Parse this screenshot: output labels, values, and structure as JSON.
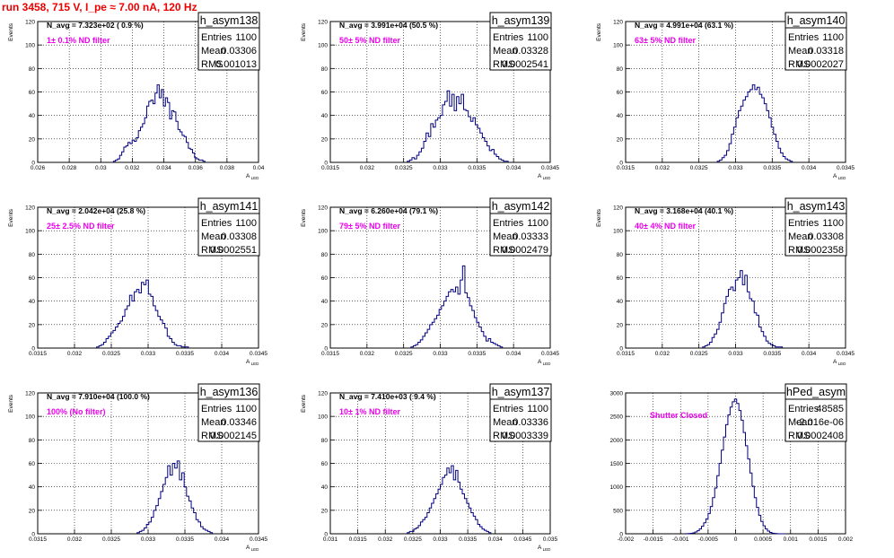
{
  "title": "run 3458,   715 V, I_pe ≈ 7.00 nA, 120 Hz",
  "colors": {
    "title": "#ee0000",
    "annotation": "#ee00ee",
    "histogram": "#000080"
  },
  "chart_data": [
    {
      "type": "histogram",
      "name": "h_asym138",
      "annotation": "N_avg = 7.323e+02 ( 0.9 %)",
      "filter_label": "1± 0.1% ND filter",
      "stats": {
        "entries_label": "Entries",
        "entries": "1100",
        "mean_label": "Mean",
        "mean": "0.03306",
        "rms_label": "RMS",
        "rms": "0.001013"
      },
      "ylabel": "Events",
      "xlabel": "A_LED",
      "xlim": [
        0.026,
        0.04
      ],
      "ylim": [
        0,
        120
      ],
      "xticks": [
        "0.026",
        "0.028",
        "0.03",
        "0.032",
        "0.034",
        "0.036",
        "0.038",
        "0.04"
      ],
      "yticks": [
        "0",
        "20",
        "40",
        "60",
        "80",
        "100",
        "120"
      ],
      "bins": {
        "x0": 0.0308,
        "width": 0.000132,
        "values": [
          1,
          2,
          3,
          6,
          9,
          13,
          14,
          17,
          16,
          19,
          18,
          21,
          27,
          30,
          33,
          38,
          48,
          52,
          53,
          50,
          59,
          66,
          55,
          62,
          48,
          55,
          51,
          37,
          44,
          43,
          35,
          28,
          26,
          23,
          22,
          17,
          12,
          11,
          8,
          4,
          3,
          2,
          2,
          1
        ]
      }
    },
    {
      "type": "histogram",
      "name": "h_asym139",
      "annotation": "N_avg = 3.991e+04 (50.5 %)",
      "filter_label": "50± 5% ND filter",
      "stats": {
        "entries_label": "Entries",
        "entries": "1100",
        "mean_label": "Mean",
        "mean": "0.03328",
        "rms_label": "RMS",
        "rms": "0.0002541"
      },
      "ylabel": "Events",
      "xlabel": "A_LED",
      "xlim": [
        0.0315,
        0.0345
      ],
      "ylim": [
        0,
        120
      ],
      "xticks": [
        "0.0315",
        "0.032",
        "0.0325",
        "0.033",
        "0.0335",
        "0.034",
        "0.0345"
      ],
      "yticks": [
        "0",
        "20",
        "40",
        "60",
        "80",
        "100",
        "120"
      ],
      "bins": {
        "x0": 0.03255,
        "width": 3.2e-05,
        "values": [
          1,
          2,
          4,
          3,
          6,
          9,
          12,
          18,
          25,
          22,
          33,
          30,
          36,
          38,
          40,
          49,
          52,
          61,
          48,
          58,
          44,
          56,
          50,
          58,
          45,
          44,
          39,
          35,
          38,
          32,
          29,
          25,
          21,
          18,
          14,
          10,
          11,
          7,
          5,
          3,
          2,
          1,
          1
        ]
      }
    },
    {
      "type": "histogram",
      "name": "h_asym140",
      "annotation": "N_avg = 4.991e+04 (63.1 %)",
      "filter_label": "63± 5% ND filter",
      "stats": {
        "entries_label": "Entries",
        "entries": "1100",
        "mean_label": "Mean",
        "mean": "0.03318",
        "rms_label": "RMS",
        "rms": "0.0002027"
      },
      "ylabel": "Events",
      "xlabel": "A_LED",
      "xlim": [
        0.0315,
        0.0345
      ],
      "ylim": [
        0,
        120
      ],
      "xticks": [
        "0.0315",
        "0.032",
        "0.0325",
        "0.033",
        "0.0335",
        "0.034",
        "0.0345"
      ],
      "yticks": [
        "0",
        "20",
        "40",
        "60",
        "80",
        "100",
        "120"
      ],
      "bins": {
        "x0": 0.03275,
        "width": 3.2e-05,
        "values": [
          1,
          2,
          4,
          6,
          10,
          16,
          24,
          30,
          38,
          44,
          48,
          53,
          56,
          60,
          62,
          66,
          62,
          64,
          58,
          55,
          50,
          44,
          38,
          30,
          24,
          18,
          12,
          8,
          5,
          3,
          2,
          1
        ]
      }
    },
    {
      "type": "histogram",
      "name": "h_asym141",
      "annotation": "N_avg = 2.042e+04 (25.8 %)",
      "filter_label": "25± 2.5% ND filter",
      "stats": {
        "entries_label": "Entries",
        "entries": "1100",
        "mean_label": "Mean",
        "mean": "0.03308",
        "rms_label": "RMS",
        "rms": "0.0002551"
      },
      "ylabel": "Events",
      "xlabel": "A_LED",
      "xlim": [
        0.0315,
        0.0345
      ],
      "ylim": [
        0,
        120
      ],
      "xticks": [
        "0.0315",
        "0.032",
        "0.0325",
        "0.033",
        "0.0335",
        "0.034",
        "0.0345"
      ],
      "yticks": [
        "0",
        "20",
        "40",
        "60",
        "80",
        "100",
        "120"
      ],
      "bins": {
        "x0": 0.0323,
        "width": 3.2e-05,
        "values": [
          1,
          2,
          3,
          5,
          8,
          10,
          13,
          15,
          18,
          21,
          23,
          27,
          33,
          36,
          45,
          40,
          48,
          50,
          47,
          56,
          54,
          58,
          46,
          44,
          36,
          32,
          27,
          24,
          21,
          17,
          10,
          8,
          5,
          3,
          2,
          2,
          1,
          1,
          1
        ]
      }
    },
    {
      "type": "histogram",
      "name": "h_asym142",
      "annotation": "N_avg = 6.260e+04 (79.1 %)",
      "filter_label": "79± 5% ND filter",
      "stats": {
        "entries_label": "Entries",
        "entries": "1100",
        "mean_label": "Mean",
        "mean": "0.03333",
        "rms_label": "RMS",
        "rms": "0.0002479"
      },
      "ylabel": "Events",
      "xlabel": "A_LED",
      "xlim": [
        0.0315,
        0.0345
      ],
      "ylim": [
        0,
        120
      ],
      "xticks": [
        "0.0315",
        "0.032",
        "0.0325",
        "0.033",
        "0.0335",
        "0.034",
        "0.0345"
      ],
      "yticks": [
        "0",
        "20",
        "40",
        "60",
        "80",
        "100",
        "120"
      ],
      "bins": {
        "x0": 0.0326,
        "width": 3.2e-05,
        "values": [
          1,
          2,
          3,
          5,
          7,
          10,
          13,
          16,
          20,
          22,
          25,
          28,
          33,
          36,
          40,
          44,
          48,
          50,
          48,
          52,
          46,
          58,
          70,
          47,
          43,
          36,
          32,
          26,
          22,
          18,
          14,
          10,
          6,
          8,
          5,
          4,
          3,
          2,
          1
        ]
      }
    },
    {
      "type": "histogram",
      "name": "h_asym143",
      "annotation": "N_avg = 3.168e+04 (40.1 %)",
      "filter_label": "40± 4% ND filter",
      "stats": {
        "entries_label": "Entries",
        "entries": "1100",
        "mean_label": "Mean",
        "mean": "0.03308",
        "rms_label": "RMS",
        "rms": "0.0002358"
      },
      "ylabel": "Events",
      "xlabel": "A_LED",
      "xlim": [
        0.0315,
        0.0345
      ],
      "ylim": [
        0,
        120
      ],
      "xticks": [
        "0.0315",
        "0.032",
        "0.0325",
        "0.033",
        "0.0335",
        "0.034",
        "0.0345"
      ],
      "yticks": [
        "0",
        "20",
        "40",
        "60",
        "80",
        "100",
        "120"
      ],
      "bins": {
        "x0": 0.03255,
        "width": 3.2e-05,
        "values": [
          1,
          2,
          3,
          5,
          9,
          12,
          16,
          22,
          30,
          38,
          44,
          50,
          52,
          49,
          58,
          60,
          66,
          54,
          62,
          48,
          42,
          40,
          30,
          28,
          18,
          14,
          10,
          6,
          4,
          3,
          2,
          1,
          1,
          1
        ]
      }
    },
    {
      "type": "histogram",
      "name": "h_asym136",
      "annotation": "N_avg = 7.910e+04 (100.0 %)",
      "filter_label": "100% (No filter)",
      "stats": {
        "entries_label": "Entries",
        "entries": "1100",
        "mean_label": "Mean",
        "mean": "0.03346",
        "rms_label": "RMS",
        "rms": "0.0002145"
      },
      "ylabel": "Events",
      "xlabel": "A_LED",
      "xlim": [
        0.0315,
        0.0345
      ],
      "ylim": [
        0,
        120
      ],
      "xticks": [
        "0.0315",
        "0.032",
        "0.0325",
        "0.033",
        "0.0335",
        "0.034",
        "0.0345"
      ],
      "yticks": [
        "0",
        "20",
        "40",
        "60",
        "80",
        "100",
        "120"
      ],
      "bins": {
        "x0": 0.03285,
        "width": 3.2e-05,
        "values": [
          1,
          2,
          3,
          5,
          8,
          10,
          14,
          20,
          24,
          30,
          36,
          42,
          48,
          58,
          50,
          60,
          56,
          62,
          46,
          52,
          40,
          32,
          28,
          22,
          18,
          12,
          10,
          6,
          4,
          3,
          2,
          1
        ]
      }
    },
    {
      "type": "histogram",
      "name": "h_asym137",
      "annotation": "N_avg = 7.410e+03 ( 9.4 %)",
      "filter_label": "10± 1% ND filter",
      "stats": {
        "entries_label": "Entries",
        "entries": "1100",
        "mean_label": "Mean",
        "mean": "0.03336",
        "rms_label": "RMS",
        "rms": "0.0003339"
      },
      "ylabel": "Events",
      "xlabel": "A_LED",
      "xlim": [
        0.031,
        0.035
      ],
      "ylim": [
        0,
        120
      ],
      "xticks": [
        "0.031",
        "0.0315",
        "0.032",
        "0.0325",
        "0.033",
        "0.0335",
        "0.034",
        "0.0345",
        "0.035"
      ],
      "yticks": [
        "0",
        "20",
        "40",
        "60",
        "80",
        "100",
        "120"
      ],
      "bins": {
        "x0": 0.0324,
        "width": 4e-05,
        "values": [
          1,
          2,
          2,
          4,
          5,
          7,
          10,
          12,
          14,
          18,
          22,
          26,
          30,
          34,
          38,
          42,
          48,
          50,
          56,
          52,
          58,
          46,
          54,
          44,
          38,
          34,
          30,
          26,
          22,
          18,
          15,
          12,
          8,
          6,
          4,
          3,
          2,
          1
        ]
      }
    },
    {
      "type": "histogram",
      "name": "hPed_asym",
      "annotation": "Shutter Closed",
      "filter_label": "",
      "stats": {
        "entries_label": "Entries",
        "entries": "48585",
        "mean_label": "Mean",
        "mean": "-2.016e-06",
        "rms_label": "RMS",
        "rms": "0.0002408"
      },
      "ylabel": "",
      "xlabel": "",
      "xlim": [
        -0.002,
        0.002
      ],
      "ylim": [
        0,
        3200
      ],
      "xticks": [
        "-0.002",
        "-0.0015",
        "-0.001",
        "-0.0005",
        "0",
        "0.0005",
        "0.001",
        "0.0015",
        "0.002"
      ],
      "yticks": [
        "0",
        "500",
        "1000",
        "1500",
        "2000",
        "2500",
        "3000"
      ],
      "bins": {
        "x0": -0.0009,
        "width": 4e-05,
        "values": [
          2,
          5,
          10,
          20,
          40,
          70,
          110,
          170,
          250,
          340,
          460,
          620,
          820,
          1040,
          1320,
          1600,
          1900,
          2200,
          2480,
          2700,
          2880,
          3000,
          3060,
          2960,
          2800,
          2580,
          2300,
          2000,
          1700,
          1380,
          1080,
          820,
          600,
          420,
          280,
          180,
          110,
          60,
          30,
          14,
          7,
          3,
          1,
          1,
          1
        ]
      }
    }
  ]
}
